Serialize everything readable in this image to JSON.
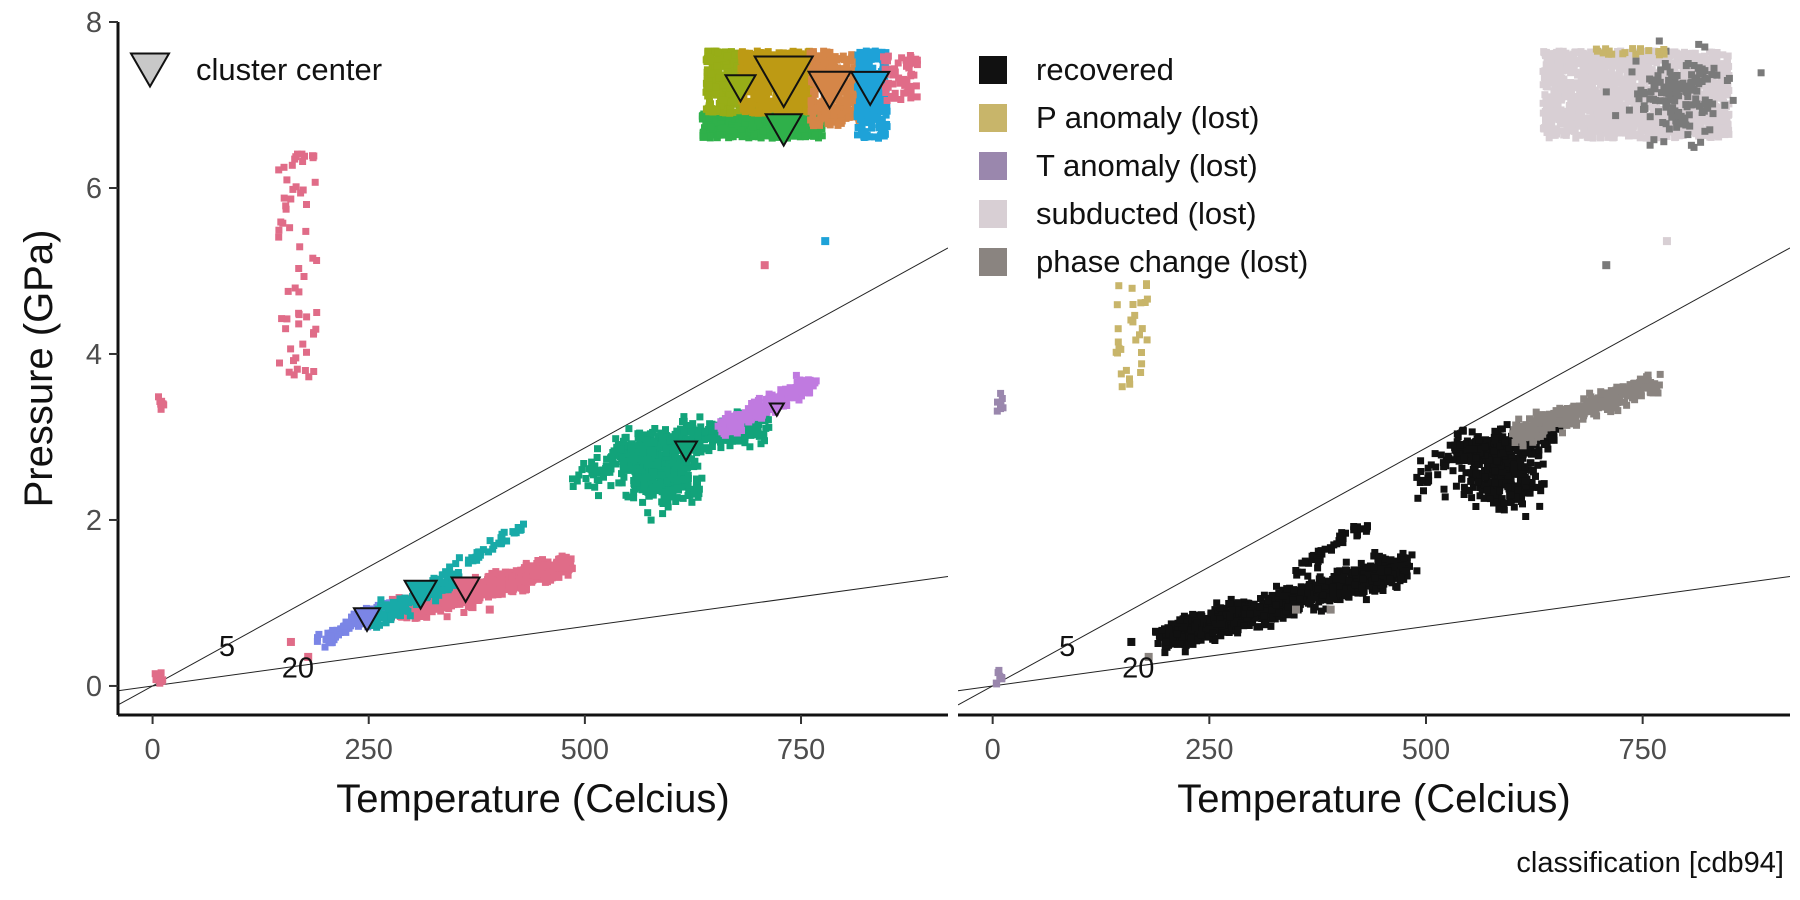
{
  "caption": "classification [cdb94]",
  "chart_data": [
    {
      "type": "scatter",
      "panel": "left",
      "xlabel": "Temperature (Celcius)",
      "ylabel": "Pressure (GPa)",
      "xlim": [
        -40,
        920
      ],
      "ylim": [
        -0.35,
        8
      ],
      "xticks": [
        0,
        250,
        500,
        750
      ],
      "yticks": [
        0,
        2,
        4,
        6,
        8
      ],
      "grid": false,
      "legend": {
        "position": "top-left",
        "entries": [
          {
            "label": "cluster center",
            "marker": "triangle-down",
            "fill": "#c8c8c8"
          }
        ]
      },
      "reference_lines": [
        {
          "label": "5",
          "slope": 0.005737,
          "label_at": [
            86,
            0.48
          ]
        },
        {
          "label": "20",
          "slope": 0.001434,
          "label_at": [
            168,
            0.22
          ]
        }
      ],
      "clusters": [
        {
          "color": "#e06c88",
          "kind": "column",
          "x_range": [
            145,
            190
          ],
          "y_range": [
            3.55,
            6.45
          ],
          "n": 60,
          "width": 5
        },
        {
          "color": "#e06c88",
          "kind": "column",
          "x_range": [
            6,
            13
          ],
          "y_range": [
            3.3,
            3.55
          ],
          "n": 8,
          "width": 5
        },
        {
          "color": "#e06c88",
          "kind": "column",
          "x_range": [
            3,
            12
          ],
          "y_range": [
            0.02,
            0.2
          ],
          "n": 8,
          "width": 5
        },
        {
          "color": "#e06c88",
          "kind": "band",
          "from": [
            285,
            0.9
          ],
          "to": [
            480,
            1.45
          ],
          "halfwidth": 0.12,
          "n": 700
        },
        {
          "color": "#7b85e6",
          "kind": "band",
          "from": [
            195,
            0.55
          ],
          "to": [
            270,
            0.95
          ],
          "halfwidth": 0.07,
          "n": 90
        },
        {
          "color": "#18aaa8",
          "kind": "band",
          "from": [
            250,
            0.78
          ],
          "to": [
            350,
            1.3
          ],
          "halfwidth": 0.09,
          "n": 180
        },
        {
          "color": "#18aaa8",
          "kind": "band",
          "from": [
            345,
            1.35
          ],
          "to": [
            430,
            1.95
          ],
          "halfwidth": 0.05,
          "n": 40
        },
        {
          "color": "#12a37a",
          "kind": "blob",
          "center": [
            588,
            2.55
          ],
          "radius": [
            40,
            0.32
          ],
          "n": 300
        },
        {
          "color": "#12a37a",
          "kind": "band",
          "from": [
            540,
            2.8
          ],
          "to": [
            710,
            3.15
          ],
          "halfwidth": 0.17,
          "n": 350
        },
        {
          "color": "#12a37a",
          "kind": "band",
          "from": [
            490,
            2.45
          ],
          "to": [
            560,
            2.95
          ],
          "halfwidth": 0.2,
          "n": 50
        },
        {
          "color": "#c07ae0",
          "kind": "band",
          "from": [
            660,
            3.1
          ],
          "to": [
            760,
            3.65
          ],
          "halfwidth": 0.09,
          "n": 220
        },
        {
          "color": "#2fb04a",
          "kind": "rect",
          "x_range": [
            635,
            775
          ],
          "y_range": [
            6.6,
            6.95
          ],
          "n": 500
        },
        {
          "color": "#97ad17",
          "kind": "rect",
          "x_range": [
            640,
            685
          ],
          "y_range": [
            6.9,
            7.65
          ],
          "n": 300
        },
        {
          "color": "#bd9a14",
          "kind": "rect",
          "x_range": [
            680,
            765
          ],
          "y_range": [
            6.9,
            7.65
          ],
          "n": 500
        },
        {
          "color": "#d58648",
          "kind": "rect",
          "x_range": [
            760,
            820
          ],
          "y_range": [
            6.75,
            7.65
          ],
          "n": 300
        },
        {
          "color": "#1ea2d8",
          "kind": "rect",
          "x_range": [
            815,
            850
          ],
          "y_range": [
            6.6,
            7.65
          ],
          "n": 200
        },
        {
          "color": "#e06c88",
          "kind": "rect",
          "x_range": [
            845,
            885
          ],
          "y_range": [
            7.05,
            7.6
          ],
          "n": 60
        }
      ],
      "outlier_points": [
        {
          "x": 778,
          "y": 5.36,
          "color": "#1ea2d8"
        },
        {
          "x": 708,
          "y": 5.07,
          "color": "#e06c88"
        },
        {
          "x": 180,
          "y": 0.35,
          "color": "#e06c88"
        },
        {
          "x": 160,
          "y": 0.53,
          "color": "#e06c88"
        },
        {
          "x": 370,
          "y": 0.95,
          "color": "#e06c88"
        },
        {
          "x": 390,
          "y": 0.92,
          "color": "#e06c88"
        }
      ],
      "cluster_centers": [
        {
          "x": 248,
          "y": 0.8,
          "size": 26,
          "color": "#7b85e6"
        },
        {
          "x": 310,
          "y": 1.1,
          "size": 32,
          "color": "#18aaa8"
        },
        {
          "x": 362,
          "y": 1.16,
          "size": 28,
          "color": "#e06c88"
        },
        {
          "x": 617,
          "y": 2.83,
          "size": 22,
          "color": "#12a37a"
        },
        {
          "x": 722,
          "y": 3.33,
          "size": 14,
          "color": "#c07ae0"
        },
        {
          "x": 680,
          "y": 7.2,
          "size": 30,
          "color": "#97ad17"
        },
        {
          "x": 730,
          "y": 7.28,
          "size": 58,
          "color": "#bd9a14"
        },
        {
          "x": 783,
          "y": 7.18,
          "size": 42,
          "color": "#d58648"
        },
        {
          "x": 830,
          "y": 7.2,
          "size": 38,
          "color": "#1ea2d8"
        },
        {
          "x": 730,
          "y": 6.7,
          "size": 36,
          "color": "#2fb04a"
        }
      ]
    },
    {
      "type": "scatter",
      "panel": "right",
      "xlabel": "Temperature (Celcius)",
      "ylabel": "",
      "xlim": [
        -40,
        920
      ],
      "ylim": [
        -0.35,
        8
      ],
      "xticks": [
        0,
        250,
        500,
        750
      ],
      "grid": false,
      "legend": {
        "position": "top-left",
        "entries": [
          {
            "label": "recovered",
            "color": "#111111"
          },
          {
            "label": "P anomaly (lost)",
            "color": "#c8b56a"
          },
          {
            "label": "T anomaly (lost)",
            "color": "#9a87ad"
          },
          {
            "label": "subducted (lost)",
            "color": "#d8cfd4"
          },
          {
            "label": "phase change (lost)",
            "color": "#8a8480"
          }
        ]
      },
      "reference_lines": [
        {
          "label": "5",
          "slope": 0.005737,
          "label_at": [
            86,
            0.48
          ]
        },
        {
          "label": "20",
          "slope": 0.001434,
          "label_at": [
            168,
            0.22
          ]
        }
      ],
      "clusters": [
        {
          "color": "#c8b56a",
          "kind": "column",
          "x_range": [
            140,
            180
          ],
          "y_range": [
            3.55,
            4.85
          ],
          "n": 30,
          "width": 5
        },
        {
          "color": "#9a87ad",
          "kind": "column",
          "x_range": [
            5,
            12
          ],
          "y_range": [
            3.3,
            3.55
          ],
          "n": 8,
          "width": 5
        },
        {
          "color": "#9a87ad",
          "kind": "column",
          "x_range": [
            3,
            12
          ],
          "y_range": [
            0.02,
            0.2
          ],
          "n": 8,
          "width": 5
        },
        {
          "color": "#111111",
          "kind": "band",
          "from": [
            195,
            0.55
          ],
          "to": [
            480,
            1.45
          ],
          "halfwidth": 0.15,
          "n": 1100
        },
        {
          "color": "#111111",
          "kind": "band",
          "from": [
            345,
            1.35
          ],
          "to": [
            430,
            1.95
          ],
          "halfwidth": 0.05,
          "n": 40
        },
        {
          "color": "#111111",
          "kind": "blob",
          "center": [
            588,
            2.55
          ],
          "radius": [
            40,
            0.32
          ],
          "n": 300
        },
        {
          "color": "#111111",
          "kind": "band",
          "from": [
            540,
            2.8
          ],
          "to": [
            650,
            3.05
          ],
          "halfwidth": 0.17,
          "n": 220
        },
        {
          "color": "#111111",
          "kind": "band",
          "from": [
            490,
            2.45
          ],
          "to": [
            560,
            2.95
          ],
          "halfwidth": 0.2,
          "n": 50
        },
        {
          "color": "#8a8480",
          "kind": "band",
          "from": [
            600,
            3.0
          ],
          "to": [
            760,
            3.65
          ],
          "halfwidth": 0.12,
          "n": 350
        },
        {
          "color": "#d8cfd4",
          "kind": "rect",
          "x_range": [
            635,
            850
          ],
          "y_range": [
            6.6,
            7.65
          ],
          "n": 1500
        },
        {
          "color": "#7a7a7a",
          "kind": "blob",
          "center": [
            790,
            7.1
          ],
          "radius": [
            50,
            0.45
          ],
          "n": 150
        },
        {
          "color": "#c8b56a",
          "kind": "rect",
          "x_range": [
            690,
            775
          ],
          "y_range": [
            7.6,
            7.68
          ],
          "n": 20
        }
      ],
      "outlier_points": [
        {
          "x": 778,
          "y": 5.36,
          "color": "#d8cfd4"
        },
        {
          "x": 708,
          "y": 5.07,
          "color": "#7a7a7a"
        },
        {
          "x": 180,
          "y": 0.35,
          "color": "#8a8480"
        },
        {
          "x": 160,
          "y": 0.53,
          "color": "#111111"
        },
        {
          "x": 350,
          "y": 0.92,
          "color": "#8a8480"
        },
        {
          "x": 390,
          "y": 0.92,
          "color": "#8a8480"
        }
      ],
      "cluster_centers": []
    }
  ]
}
